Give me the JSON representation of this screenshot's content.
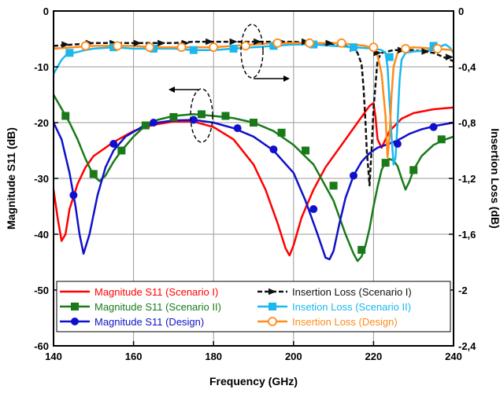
{
  "chart_data": {
    "type": "line",
    "xlabel": "Frequency (GHz)",
    "ylabel": "Magnitude S11 (dB)",
    "y2label": "Insertion Loss (dB)",
    "xlim": [
      140,
      240
    ],
    "ylim": [
      -60,
      0
    ],
    "y2lim": [
      -2.4,
      0
    ],
    "x_ticks": [
      "140",
      "160",
      "180",
      "200",
      "220",
      "240"
    ],
    "y_ticks": [
      "0",
      "-10",
      "-20",
      "-30",
      "-40",
      "-50",
      "-60"
    ],
    "y2_ticks": [
      "0",
      "-0,4",
      "-0,8",
      "-1,2",
      "-1,6",
      "-2",
      "-2,4"
    ],
    "grid": true,
    "legend_placement": "bottom",
    "series": [
      {
        "name": "Magnitude S11 (Scenario I)",
        "axis": "left",
        "color": "#ff0000",
        "marker": "none",
        "line": "solid",
        "x": [
          140,
          141,
          142,
          143,
          144,
          146,
          148,
          150,
          155,
          160,
          165,
          170,
          175,
          180,
          185,
          190,
          193,
          196,
          198,
          199,
          200,
          202,
          205,
          208,
          212,
          216,
          218,
          219,
          220,
          220.5,
          221,
          222,
          224,
          227,
          230,
          235,
          240
        ],
        "y": [
          -32,
          -37,
          -41.2,
          -40,
          -35.5,
          -31,
          -28,
          -26,
          -23.5,
          -21.5,
          -20.4,
          -19.8,
          -19.8,
          -20.8,
          -23,
          -27.5,
          -32,
          -38,
          -42.5,
          -43.8,
          -42,
          -37,
          -32,
          -28,
          -24,
          -20,
          -18,
          -17,
          -16.5,
          -19,
          -23,
          -24.5,
          -21.5,
          -19.3,
          -18.3,
          -17.6,
          -17.3
        ]
      },
      {
        "name": "Magnitude S11 (Scenario II)",
        "axis": "left",
        "color": "#1a7a1a",
        "marker": "square",
        "line": "solid",
        "x": [
          140,
          142,
          144,
          146,
          148,
          150,
          151.5,
          153,
          155,
          157,
          160,
          163,
          166,
          170,
          175,
          180,
          185,
          190,
          195,
          200,
          205,
          210,
          213,
          215,
          216,
          217,
          218,
          219,
          220,
          221,
          222,
          223,
          224,
          225,
          226,
          227,
          228,
          229,
          230,
          232,
          235,
          238,
          240
        ],
        "y": [
          -15,
          -17.5,
          -20,
          -23,
          -26.5,
          -29.5,
          -30.5,
          -29.5,
          -27,
          -25,
          -22.5,
          -20.5,
          -19.5,
          -18.8,
          -18.5,
          -18.8,
          -19.2,
          -20,
          -21.5,
          -24,
          -27.5,
          -34,
          -40,
          -43.5,
          -44.8,
          -44,
          -42,
          -39,
          -35,
          -31.5,
          -28.5,
          -27,
          -26.5,
          -26.8,
          -27.8,
          -30,
          -32,
          -30.5,
          -28.5,
          -26,
          -24,
          -23,
          -22.5
        ],
        "marker_x": [
          143,
          150,
          157,
          163,
          170,
          177,
          183,
          190,
          197,
          203,
          210,
          217,
          223,
          230,
          237
        ],
        "marker_y": [
          -18.8,
          -29.2,
          -25,
          -20.5,
          -19,
          -18.5,
          -18.8,
          -20,
          -21.8,
          -25,
          -31.3,
          -42.8,
          -27.2,
          -28.5,
          -23
        ]
      },
      {
        "name": "Magnitude S11 (Design)",
        "axis": "left",
        "color": "#1010cc",
        "marker": "circle",
        "line": "solid",
        "x": [
          140,
          142,
          144,
          145.5,
          146.5,
          147.5,
          149,
          151,
          153,
          155,
          158,
          162,
          166,
          170,
          175,
          180,
          185,
          190,
          195,
          200,
          203,
          206,
          208,
          209,
          210,
          211.5,
          213,
          215,
          217,
          219,
          221,
          223,
          225,
          227,
          229,
          232,
          236,
          240
        ],
        "y": [
          -20,
          -23,
          -29,
          -35,
          -40,
          -43.5,
          -40,
          -33,
          -28,
          -25,
          -22.5,
          -20.8,
          -20,
          -19.6,
          -19.5,
          -20,
          -21,
          -22.5,
          -25,
          -29,
          -34,
          -40,
          -44.2,
          -44.5,
          -43,
          -38,
          -33.5,
          -29.5,
          -27,
          -25.5,
          -24.5,
          -24,
          -23.5,
          -22.8,
          -22,
          -21.2,
          -20.5,
          -20
        ],
        "marker_x": [
          145,
          155,
          165,
          175,
          186,
          195,
          205,
          215,
          226,
          235
        ],
        "marker_y": [
          -33,
          -23.8,
          -20,
          -19.5,
          -21,
          -24.8,
          -35.5,
          -29.5,
          -23.8,
          -20.8
        ]
      },
      {
        "name": "Insertion Loss (Scenario I)",
        "axis": "right",
        "color": "#111111",
        "marker": "triangle",
        "line": "dashed",
        "x": [
          140,
          145,
          150,
          155,
          160,
          165,
          170,
          175,
          180,
          185,
          190,
          195,
          200,
          205,
          210,
          213,
          215,
          216,
          217,
          217.5,
          218,
          218.3,
          218.6,
          219,
          219.5,
          220,
          221,
          222,
          225,
          230,
          235,
          240
        ],
        "y": [
          -0.25,
          -0.24,
          -0.23,
          -0.23,
          -0.23,
          -0.23,
          -0.23,
          -0.22,
          -0.22,
          -0.22,
          -0.22,
          -0.22,
          -0.22,
          -0.23,
          -0.24,
          -0.25,
          -0.27,
          -0.3,
          -0.38,
          -0.55,
          -0.8,
          -1.0,
          -1.1,
          -1.25,
          -1.0,
          -0.7,
          -0.35,
          -0.3,
          -0.28,
          -0.28,
          -0.3,
          -0.36
        ],
        "marker_x": [
          143,
          149,
          155,
          161,
          167,
          173,
          179,
          185,
          191,
          197,
          203,
          209,
          215,
          221,
          227,
          233,
          239
        ],
        "marker_y": [
          -0.24,
          -0.23,
          -0.23,
          -0.23,
          -0.23,
          -0.23,
          -0.22,
          -0.22,
          -0.22,
          -0.22,
          -0.22,
          -0.23,
          -0.27,
          -0.3,
          -0.28,
          -0.29,
          -0.33
        ]
      },
      {
        "name": "Insetion Loss (Scenario II)",
        "axis": "right",
        "color": "#1ab8ee",
        "marker": "square",
        "line": "solid",
        "x": [
          140,
          141,
          142,
          143,
          145,
          148,
          150,
          155,
          160,
          165,
          170,
          175,
          180,
          185,
          190,
          195,
          200,
          205,
          210,
          215,
          220,
          222,
          223,
          223.5,
          224,
          224.5,
          225,
          225.5,
          226,
          226.5,
          227,
          228,
          230,
          235,
          237,
          238,
          239,
          240
        ],
        "y": [
          -0.45,
          -0.4,
          -0.35,
          -0.32,
          -0.3,
          -0.28,
          -0.27,
          -0.26,
          -0.27,
          -0.27,
          -0.27,
          -0.28,
          -0.28,
          -0.27,
          -0.26,
          -0.25,
          -0.24,
          -0.24,
          -0.25,
          -0.26,
          -0.27,
          -0.28,
          -0.3,
          -0.4,
          -0.65,
          -0.9,
          -1.1,
          -1.05,
          -0.8,
          -0.5,
          -0.35,
          -0.3,
          -0.29,
          -0.28,
          -0.25,
          -0.24,
          -0.26,
          -0.3
        ],
        "marker_x": [
          144,
          155,
          165,
          175,
          185,
          195,
          205,
          215,
          224,
          235
        ],
        "marker_y": [
          -0.3,
          -0.26,
          -0.27,
          -0.28,
          -0.27,
          -0.25,
          -0.24,
          -0.26,
          -0.33,
          -0.25
        ]
      },
      {
        "name": "Insertion Loss (Design)",
        "axis": "right",
        "color": "#ff8c1a",
        "marker": "open-circle",
        "line": "solid",
        "x": [
          140,
          145,
          150,
          155,
          160,
          165,
          170,
          175,
          180,
          185,
          190,
          195,
          200,
          205,
          210,
          215,
          218,
          220,
          221,
          222,
          223,
          223.5,
          224,
          224.5,
          225,
          226,
          228,
          230,
          235,
          240
        ],
        "y": [
          -0.27,
          -0.26,
          -0.25,
          -0.25,
          -0.25,
          -0.26,
          -0.26,
          -0.26,
          -0.26,
          -0.25,
          -0.24,
          -0.23,
          -0.23,
          -0.23,
          -0.23,
          -0.24,
          -0.25,
          -0.27,
          -0.32,
          -0.45,
          -0.75,
          -1.05,
          -0.9,
          -0.6,
          -0.4,
          -0.3,
          -0.27,
          -0.26,
          -0.27,
          -0.28
        ],
        "marker_x": [
          148,
          156,
          164,
          172,
          180,
          188,
          196,
          204,
          212,
          220,
          228,
          236
        ],
        "marker_y": [
          -0.25,
          -0.25,
          -0.26,
          -0.26,
          -0.26,
          -0.25,
          -0.23,
          -0.23,
          -0.23,
          -0.26,
          -0.27,
          -0.27
        ]
      }
    ]
  }
}
